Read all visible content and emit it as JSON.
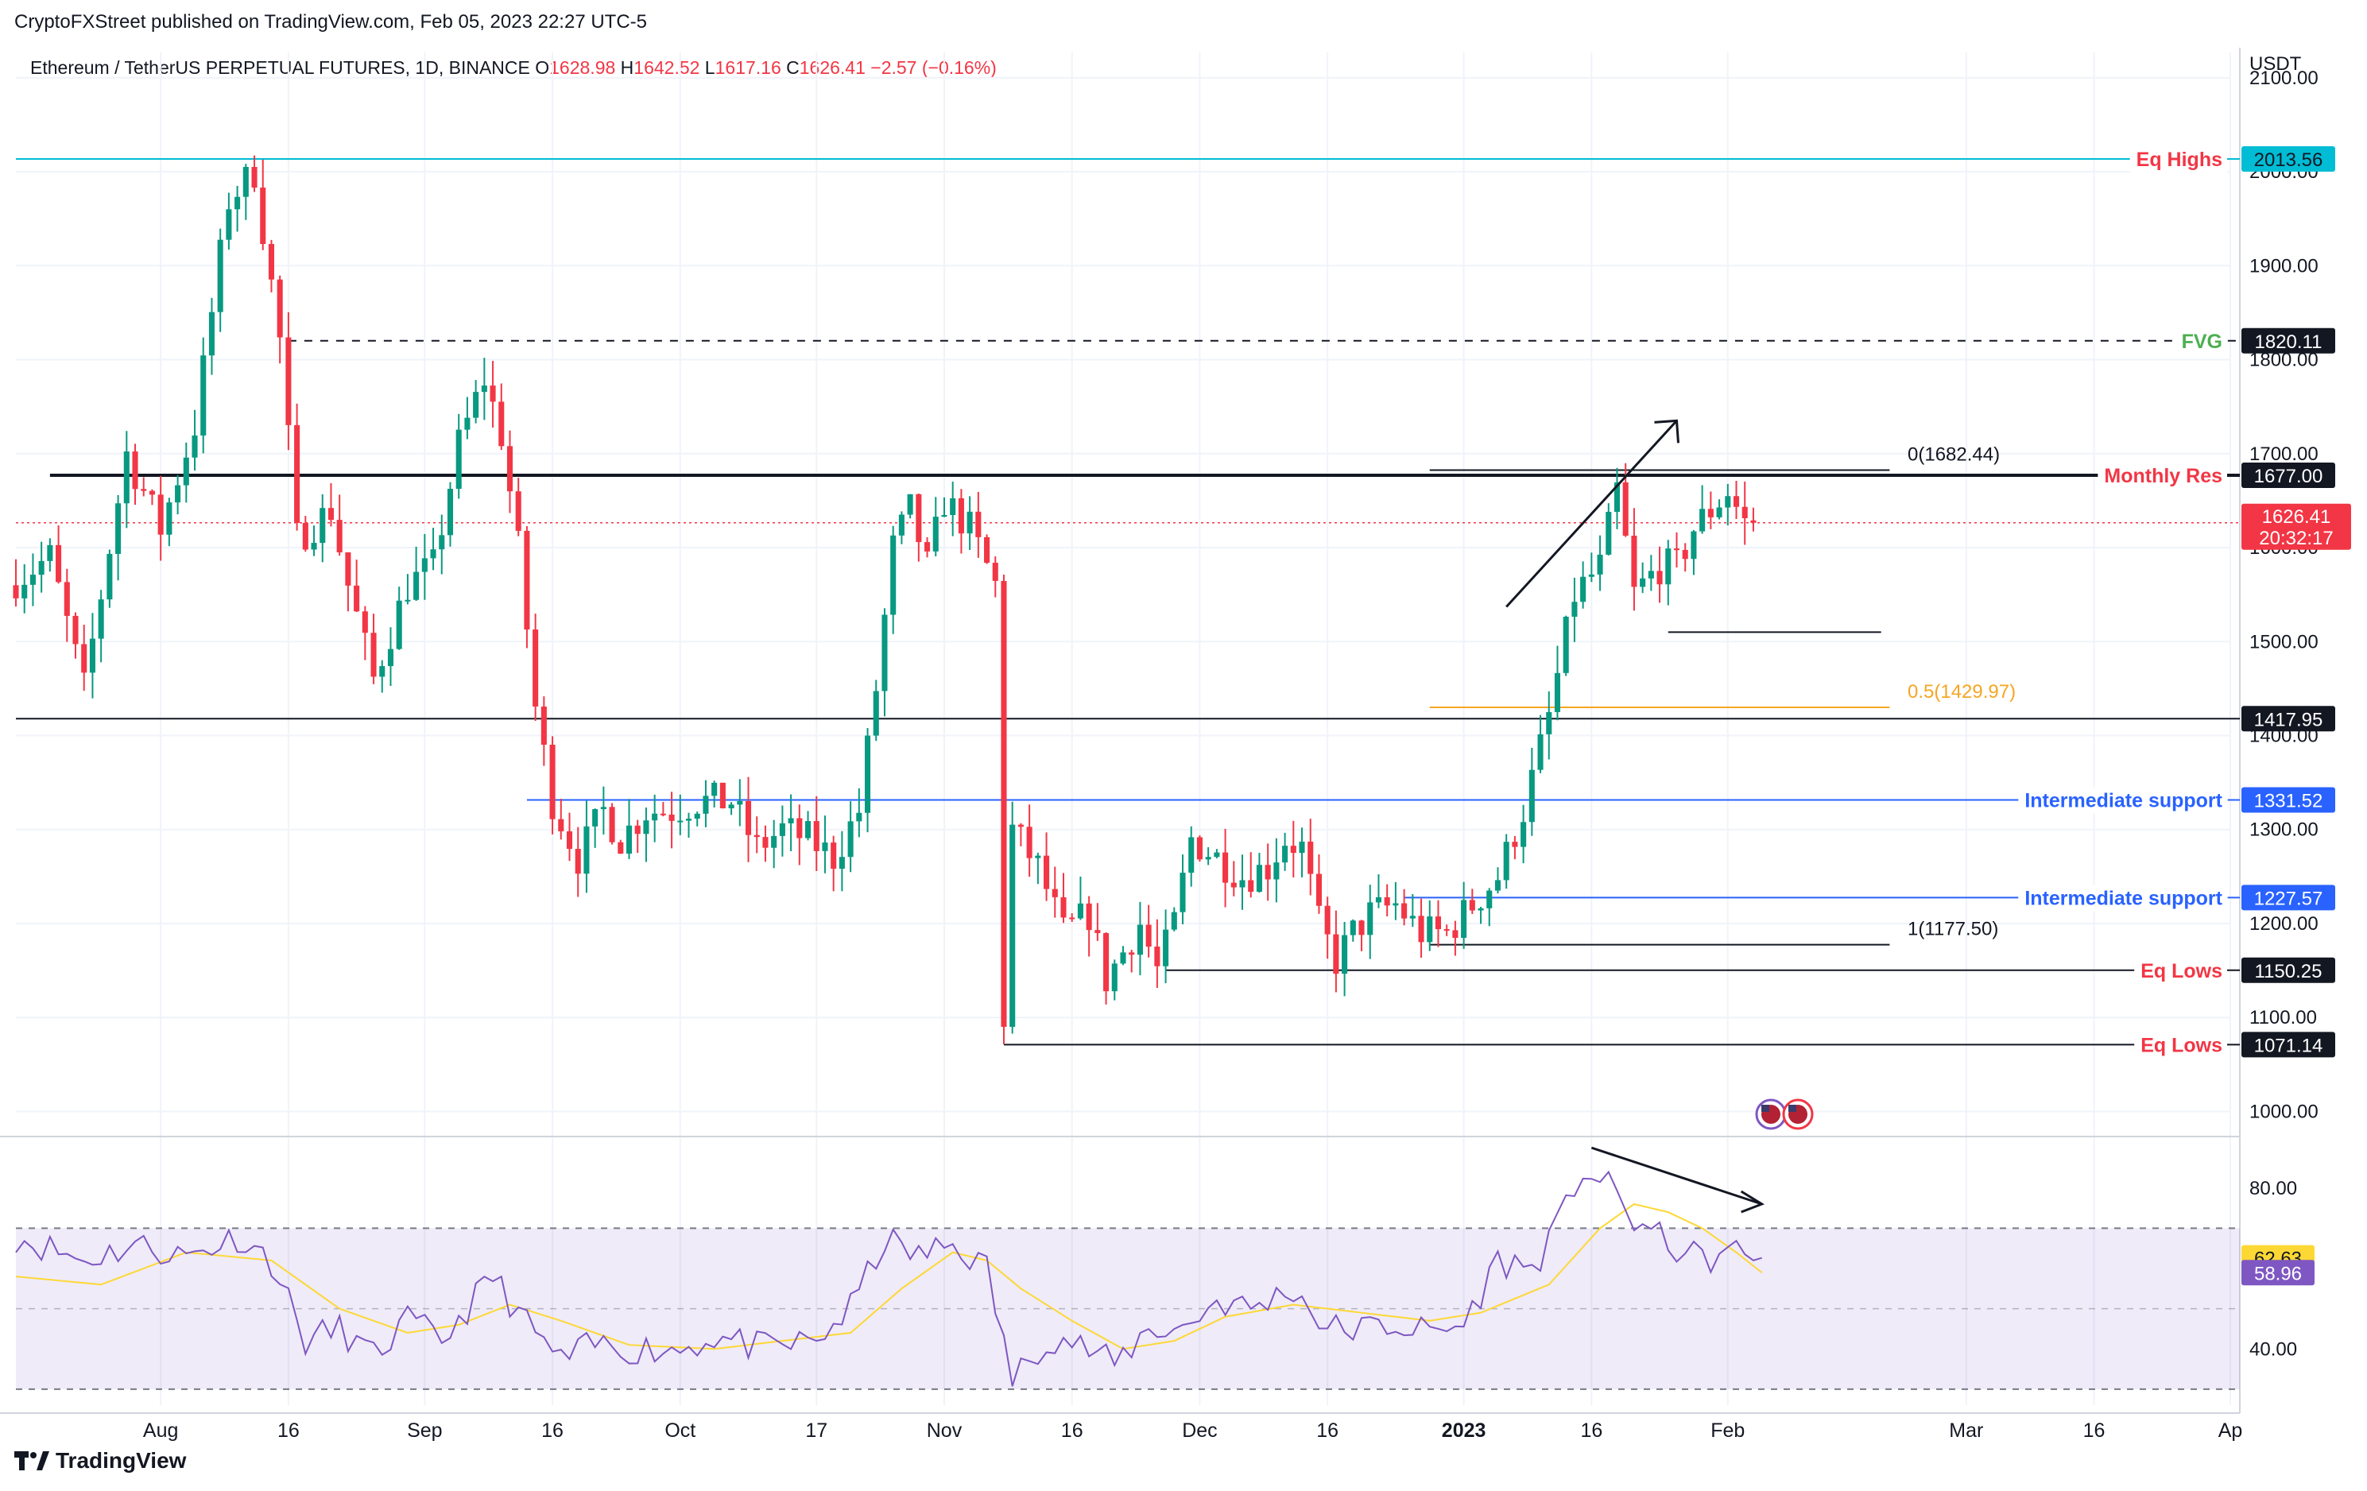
{
  "header": {
    "publisher": "CryptoFXStreet published on TradingView.com, Feb 05, 2023 22:27 UTC-5",
    "symbol": "Ethereum / TetherUS PERPETUAL FUTURES, 1D, BINANCE",
    "ohlc": [
      {
        "key": "O",
        "val": "1628.98"
      },
      {
        "key": "H",
        "val": "1642.52"
      },
      {
        "key": "L",
        "val": "1617.16"
      },
      {
        "key": "C",
        "val": "1626.41"
      }
    ],
    "change": "−2.57 (−0.16%)"
  },
  "footer": {
    "brand": "TradingView"
  },
  "colors": {
    "up": "#089981",
    "down": "#f23645",
    "grid": "#f0f3fa",
    "cyan": "#00bcd4",
    "blue": "#2962ff",
    "green": "#4caf50",
    "orange": "#f5a623",
    "rsi": "#7e57c2",
    "rsi_ma": "#fdd835"
  },
  "chart_data": {
    "type": "candlestick",
    "currency": "USDT",
    "y_ticks": [
      1000,
      1100,
      1200,
      1300,
      1400,
      1500,
      1600,
      1700,
      1800,
      1900,
      2000,
      2100
    ],
    "y_tick_labels": [
      "1000.00",
      "1100.00",
      "1200.00",
      "1300.00",
      "1400.00",
      "1500.00",
      "1600.00",
      "1700.00",
      "1800.00",
      "1900.00",
      "2000.00",
      "2100.00"
    ],
    "ylim": [
      975,
      2110
    ],
    "x_labels": [
      {
        "day": 17,
        "text": "Aug"
      },
      {
        "day": 32,
        "text": "16"
      },
      {
        "day": 48,
        "text": "Sep"
      },
      {
        "day": 63,
        "text": "16"
      },
      {
        "day": 78,
        "text": "Oct"
      },
      {
        "day": 94,
        "text": "17"
      },
      {
        "day": 109,
        "text": "Nov"
      },
      {
        "day": 124,
        "text": "16"
      },
      {
        "day": 139,
        "text": "Dec"
      },
      {
        "day": 154,
        "text": "16"
      },
      {
        "day": 170,
        "text": "2023",
        "bold": true
      },
      {
        "day": 185,
        "text": "16"
      },
      {
        "day": 201,
        "text": "Feb"
      },
      {
        "day": 229,
        "text": "Mar"
      },
      {
        "day": 244,
        "text": "16"
      },
      {
        "day": 260,
        "text": "Ap"
      }
    ],
    "anchors": [
      [
        0,
        1560
      ],
      [
        5,
        1590
      ],
      [
        9,
        1450
      ],
      [
        14,
        1700
      ],
      [
        18,
        1620
      ],
      [
        22,
        1730
      ],
      [
        26,
        1970
      ],
      [
        29,
        2000
      ],
      [
        32,
        1820
      ],
      [
        34,
        1610
      ],
      [
        38,
        1640
      ],
      [
        40,
        1560
      ],
      [
        43,
        1460
      ],
      [
        47,
        1560
      ],
      [
        50,
        1580
      ],
      [
        53,
        1710
      ],
      [
        56,
        1780
      ],
      [
        58,
        1720
      ],
      [
        60,
        1600
      ],
      [
        62,
        1430
      ],
      [
        64,
        1330
      ],
      [
        67,
        1270
      ],
      [
        70,
        1320
      ],
      [
        72,
        1290
      ],
      [
        75,
        1320
      ],
      [
        78,
        1320
      ],
      [
        81,
        1330
      ],
      [
        85,
        1330
      ],
      [
        88,
        1280
      ],
      [
        91,
        1300
      ],
      [
        94,
        1290
      ],
      [
        97,
        1270
      ],
      [
        100,
        1320
      ],
      [
        102,
        1450
      ],
      [
        104,
        1600
      ],
      [
        106,
        1640
      ],
      [
        108,
        1580
      ],
      [
        110,
        1650
      ],
      [
        113,
        1620
      ],
      [
        116,
        1560
      ],
      [
        116.5,
        1330
      ],
      [
        117,
        1100
      ],
      [
        118,
        1300
      ],
      [
        121,
        1260
      ],
      [
        124,
        1190
      ],
      [
        127,
        1210
      ],
      [
        129,
        1140
      ],
      [
        131,
        1170
      ],
      [
        133,
        1200
      ],
      [
        135,
        1150
      ],
      [
        137,
        1200
      ],
      [
        139,
        1290
      ],
      [
        142,
        1270
      ],
      [
        145,
        1250
      ],
      [
        148,
        1260
      ],
      [
        150,
        1290
      ],
      [
        152,
        1280
      ],
      [
        154,
        1200
      ],
      [
        156,
        1160
      ],
      [
        158,
        1190
      ],
      [
        160,
        1210
      ],
      [
        163,
        1220
      ],
      [
        166,
        1190
      ],
      [
        169,
        1190
      ],
      [
        172,
        1220
      ],
      [
        175,
        1250
      ],
      [
        178,
        1320
      ],
      [
        181,
        1420
      ],
      [
        184,
        1550
      ],
      [
        187,
        1580
      ],
      [
        189,
        1660
      ],
      [
        191,
        1550
      ],
      [
        194,
        1580
      ],
      [
        196,
        1580
      ],
      [
        198,
        1620
      ],
      [
        200,
        1640
      ],
      [
        202,
        1660
      ],
      [
        204,
        1626.41
      ]
    ],
    "last_candle": {
      "open": 1628.98,
      "high": 1642.52,
      "low": 1617.16,
      "close": 1626.41
    },
    "levels": [
      {
        "price": 2013.56,
        "label": "Eq Highs",
        "label_color": "#f23645",
        "line_color": "#00bcd4",
        "badge_bg": "#00bcd4",
        "badge_fg": "#131722",
        "badge": "2013.56",
        "from_day": 0
      },
      {
        "price": 1820.11,
        "label": "FVG",
        "label_color": "#4caf50",
        "line_color": "#131722",
        "dashed": true,
        "badge_bg": "#131722",
        "badge_fg": "#ffffff",
        "badge": "1820.11",
        "from_day": 32
      },
      {
        "price": 1677.0,
        "label": "Monthly Res",
        "label_color": "#f23645",
        "line_color": "#131722",
        "thick": true,
        "badge_bg": "#131722",
        "badge_fg": "#ffffff",
        "badge": "1677.00",
        "from_day": 4
      },
      {
        "price": 1417.95,
        "label": "",
        "line_color": "#131722",
        "badge_bg": "#131722",
        "badge_fg": "#ffffff",
        "badge": "1417.95",
        "from_day": 0
      },
      {
        "price": 1331.52,
        "label": "Intermediate support",
        "label_color": "#2962ff",
        "line_color": "#2962ff",
        "badge_bg": "#2962ff",
        "badge_fg": "#ffffff",
        "badge": "1331.52",
        "from_day": 60
      },
      {
        "price": 1227.57,
        "label": "Intermediate support",
        "label_color": "#2962ff",
        "line_color": "#2962ff",
        "badge_bg": "#2962ff",
        "badge_fg": "#ffffff",
        "badge": "1227.57",
        "from_day": 163
      },
      {
        "price": 1150.25,
        "label": "Eq Lows",
        "label_color": "#f23645",
        "line_color": "#131722",
        "badge_bg": "#131722",
        "badge_fg": "#ffffff",
        "badge": "1150.25",
        "from_day": 135
      },
      {
        "price": 1071.14,
        "label": "Eq Lows",
        "label_color": "#f23645",
        "line_color": "#131722",
        "badge_bg": "#131722",
        "badge_fg": "#ffffff",
        "badge": "1071.14",
        "from_day": 116
      }
    ],
    "fib": {
      "from_day": 166,
      "to_day": 220,
      "levels": [
        {
          "price": 1682.44,
          "label": "0(1682.44)",
          "color": "#131722"
        },
        {
          "price": 1429.97,
          "label": "0.5(1429.97)",
          "color": "#f5a623"
        },
        {
          "price": 1177.5,
          "label": "1(1177.50)",
          "color": "#131722"
        }
      ]
    },
    "swing_low_segment": {
      "price": 1510,
      "from_day": 194,
      "to_day": 219
    },
    "trend_arrow": {
      "from": [
        175,
        1537
      ],
      "to": [
        195,
        1735
      ]
    },
    "current_price": {
      "badge": "1626.41",
      "timer": "20:32:17",
      "price": 1626.41
    },
    "rsi": {
      "ylim": [
        28,
        92
      ],
      "ticks": [
        {
          "v": 80,
          "label": "80.00"
        },
        {
          "v": 40,
          "label": "40.00"
        }
      ],
      "band_upper": 70,
      "band_lower": 30,
      "mid": 50,
      "rsi_badge": "62.63",
      "ma_badge": "58.96",
      "rsi_anchors": [
        [
          0,
          68
        ],
        [
          8,
          62
        ],
        [
          14,
          66
        ],
        [
          20,
          63
        ],
        [
          26,
          68
        ],
        [
          30,
          62
        ],
        [
          34,
          42
        ],
        [
          38,
          45
        ],
        [
          42,
          38
        ],
        [
          46,
          47
        ],
        [
          50,
          42
        ],
        [
          56,
          58
        ],
        [
          60,
          46
        ],
        [
          64,
          37
        ],
        [
          68,
          41
        ],
        [
          72,
          40
        ],
        [
          78,
          40
        ],
        [
          82,
          43
        ],
        [
          88,
          40
        ],
        [
          94,
          42
        ],
        [
          98,
          50
        ],
        [
          102,
          67
        ],
        [
          106,
          63
        ],
        [
          110,
          66
        ],
        [
          114,
          60
        ],
        [
          117,
          32
        ],
        [
          121,
          43
        ],
        [
          124,
          42
        ],
        [
          129,
          36
        ],
        [
          133,
          45
        ],
        [
          137,
          45
        ],
        [
          141,
          52
        ],
        [
          145,
          50
        ],
        [
          150,
          55
        ],
        [
          154,
          45
        ],
        [
          158,
          45
        ],
        [
          162,
          46
        ],
        [
          166,
          44
        ],
        [
          170,
          46
        ],
        [
          174,
          62
        ],
        [
          178,
          60
        ],
        [
          181,
          70
        ],
        [
          184,
          85
        ],
        [
          187,
          80
        ],
        [
          190,
          72
        ],
        [
          194,
          66
        ],
        [
          198,
          62
        ],
        [
          202,
          64
        ],
        [
          205,
          62.63
        ]
      ],
      "ma_anchors": [
        [
          0,
          58
        ],
        [
          10,
          56
        ],
        [
          20,
          64
        ],
        [
          30,
          62
        ],
        [
          38,
          50
        ],
        [
          46,
          44
        ],
        [
          52,
          46
        ],
        [
          58,
          51
        ],
        [
          64,
          47
        ],
        [
          72,
          41
        ],
        [
          82,
          40
        ],
        [
          90,
          42
        ],
        [
          98,
          44
        ],
        [
          104,
          55
        ],
        [
          110,
          64
        ],
        [
          114,
          62
        ],
        [
          118,
          55
        ],
        [
          124,
          47
        ],
        [
          130,
          40
        ],
        [
          136,
          42
        ],
        [
          142,
          48
        ],
        [
          150,
          51
        ],
        [
          158,
          49
        ],
        [
          166,
          47
        ],
        [
          172,
          49
        ],
        [
          180,
          56
        ],
        [
          186,
          70
        ],
        [
          190,
          76
        ],
        [
          194,
          74
        ],
        [
          198,
          70
        ],
        [
          202,
          64
        ],
        [
          205,
          58.96
        ]
      ],
      "arrow": {
        "from": [
          185,
          90
        ],
        "to": [
          205,
          76
        ]
      }
    }
  }
}
